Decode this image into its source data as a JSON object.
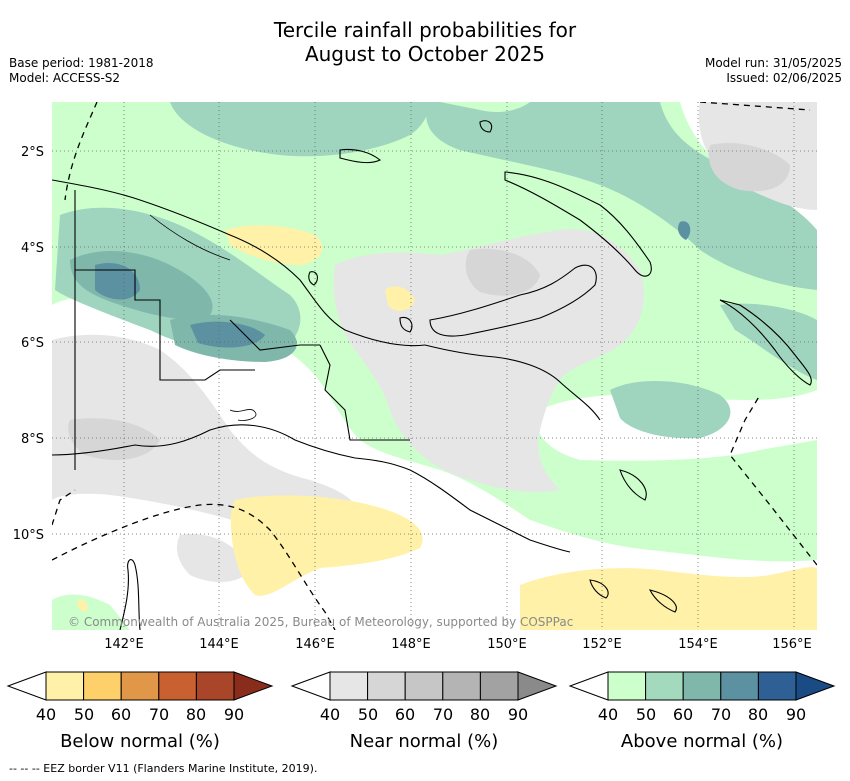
{
  "title": {
    "line1": "Tercile rainfall probabilities for",
    "line2": "August to October 2025"
  },
  "meta": {
    "base_period": "Base period: 1981-2018",
    "model": "Model: ACCESS-S2",
    "model_run": "Model run: 31/05/2025",
    "issued": "Issued: 02/06/2025"
  },
  "map": {
    "lat_labels": [
      "2°S",
      "4°S",
      "6°S",
      "8°S",
      "10°S"
    ],
    "lon_labels": [
      "142°E",
      "144°E",
      "146°E",
      "148°E",
      "150°E",
      "152°E",
      "154°E",
      "156°E"
    ],
    "copyright": "© Commonwealth of Australia 2025, Bureau of Meteorology, supported by COSPPac"
  },
  "colorbars": [
    {
      "title": "Below normal (%)",
      "ticks": [
        "40",
        "50",
        "60",
        "70",
        "80",
        "90"
      ],
      "colors": [
        "#fff1a8",
        "#fdd06a",
        "#e09748",
        "#c9602f",
        "#a94528",
        "#8a2c1c"
      ]
    },
    {
      "title": "Near normal (%)",
      "ticks": [
        "40",
        "50",
        "60",
        "70",
        "80",
        "90"
      ],
      "colors": [
        "#e6e6e6",
        "#d6d6d6",
        "#c6c6c6",
        "#b4b4b4",
        "#a2a2a2",
        "#8a8a8a"
      ]
    },
    {
      "title": "Above normal (%)",
      "ticks": [
        "40",
        "50",
        "60",
        "70",
        "80",
        "90"
      ],
      "colors": [
        "#ccffcc",
        "#a3d9bd",
        "#7fb8ab",
        "#5c91a1",
        "#2e5f95",
        "#1a4b85"
      ]
    }
  ],
  "footer": "--  --  -- EEZ border V11 (Flanders Marine Institute, 2019).",
  "colors": {
    "above_40": "#ccffcc",
    "above_50": "#9fd4bf",
    "above_60": "#7fb8ab",
    "above_70": "#5c91a1",
    "near_40": "#e6e6e6",
    "near_50": "#d6d6d6",
    "below_40": "#fff1a8"
  }
}
